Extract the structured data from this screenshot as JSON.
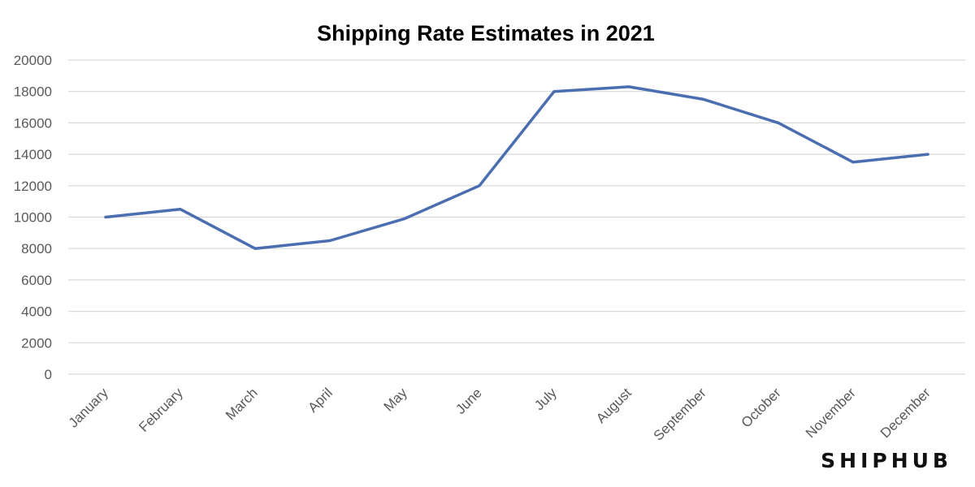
{
  "chart_data": {
    "type": "line",
    "title": "Shipping Rate Estimates in 2021",
    "xlabel": "",
    "ylabel": "",
    "categories": [
      "January",
      "February",
      "March",
      "April",
      "May",
      "June",
      "July",
      "August",
      "September",
      "October",
      "November",
      "December"
    ],
    "series": [
      {
        "values": [
          10000,
          10500,
          8000,
          8500,
          9900,
          12000,
          18000,
          18300,
          17500,
          16000,
          13500,
          14000
        ],
        "color": "#4a6eb0"
      }
    ],
    "ylim": [
      0,
      20000
    ],
    "yticks": [
      0,
      2000,
      4000,
      6000,
      8000,
      10000,
      12000,
      14000,
      16000,
      18000,
      20000
    ],
    "grid": true,
    "legend": "none"
  },
  "brand": {
    "logo_text": "SHIPHUB"
  }
}
